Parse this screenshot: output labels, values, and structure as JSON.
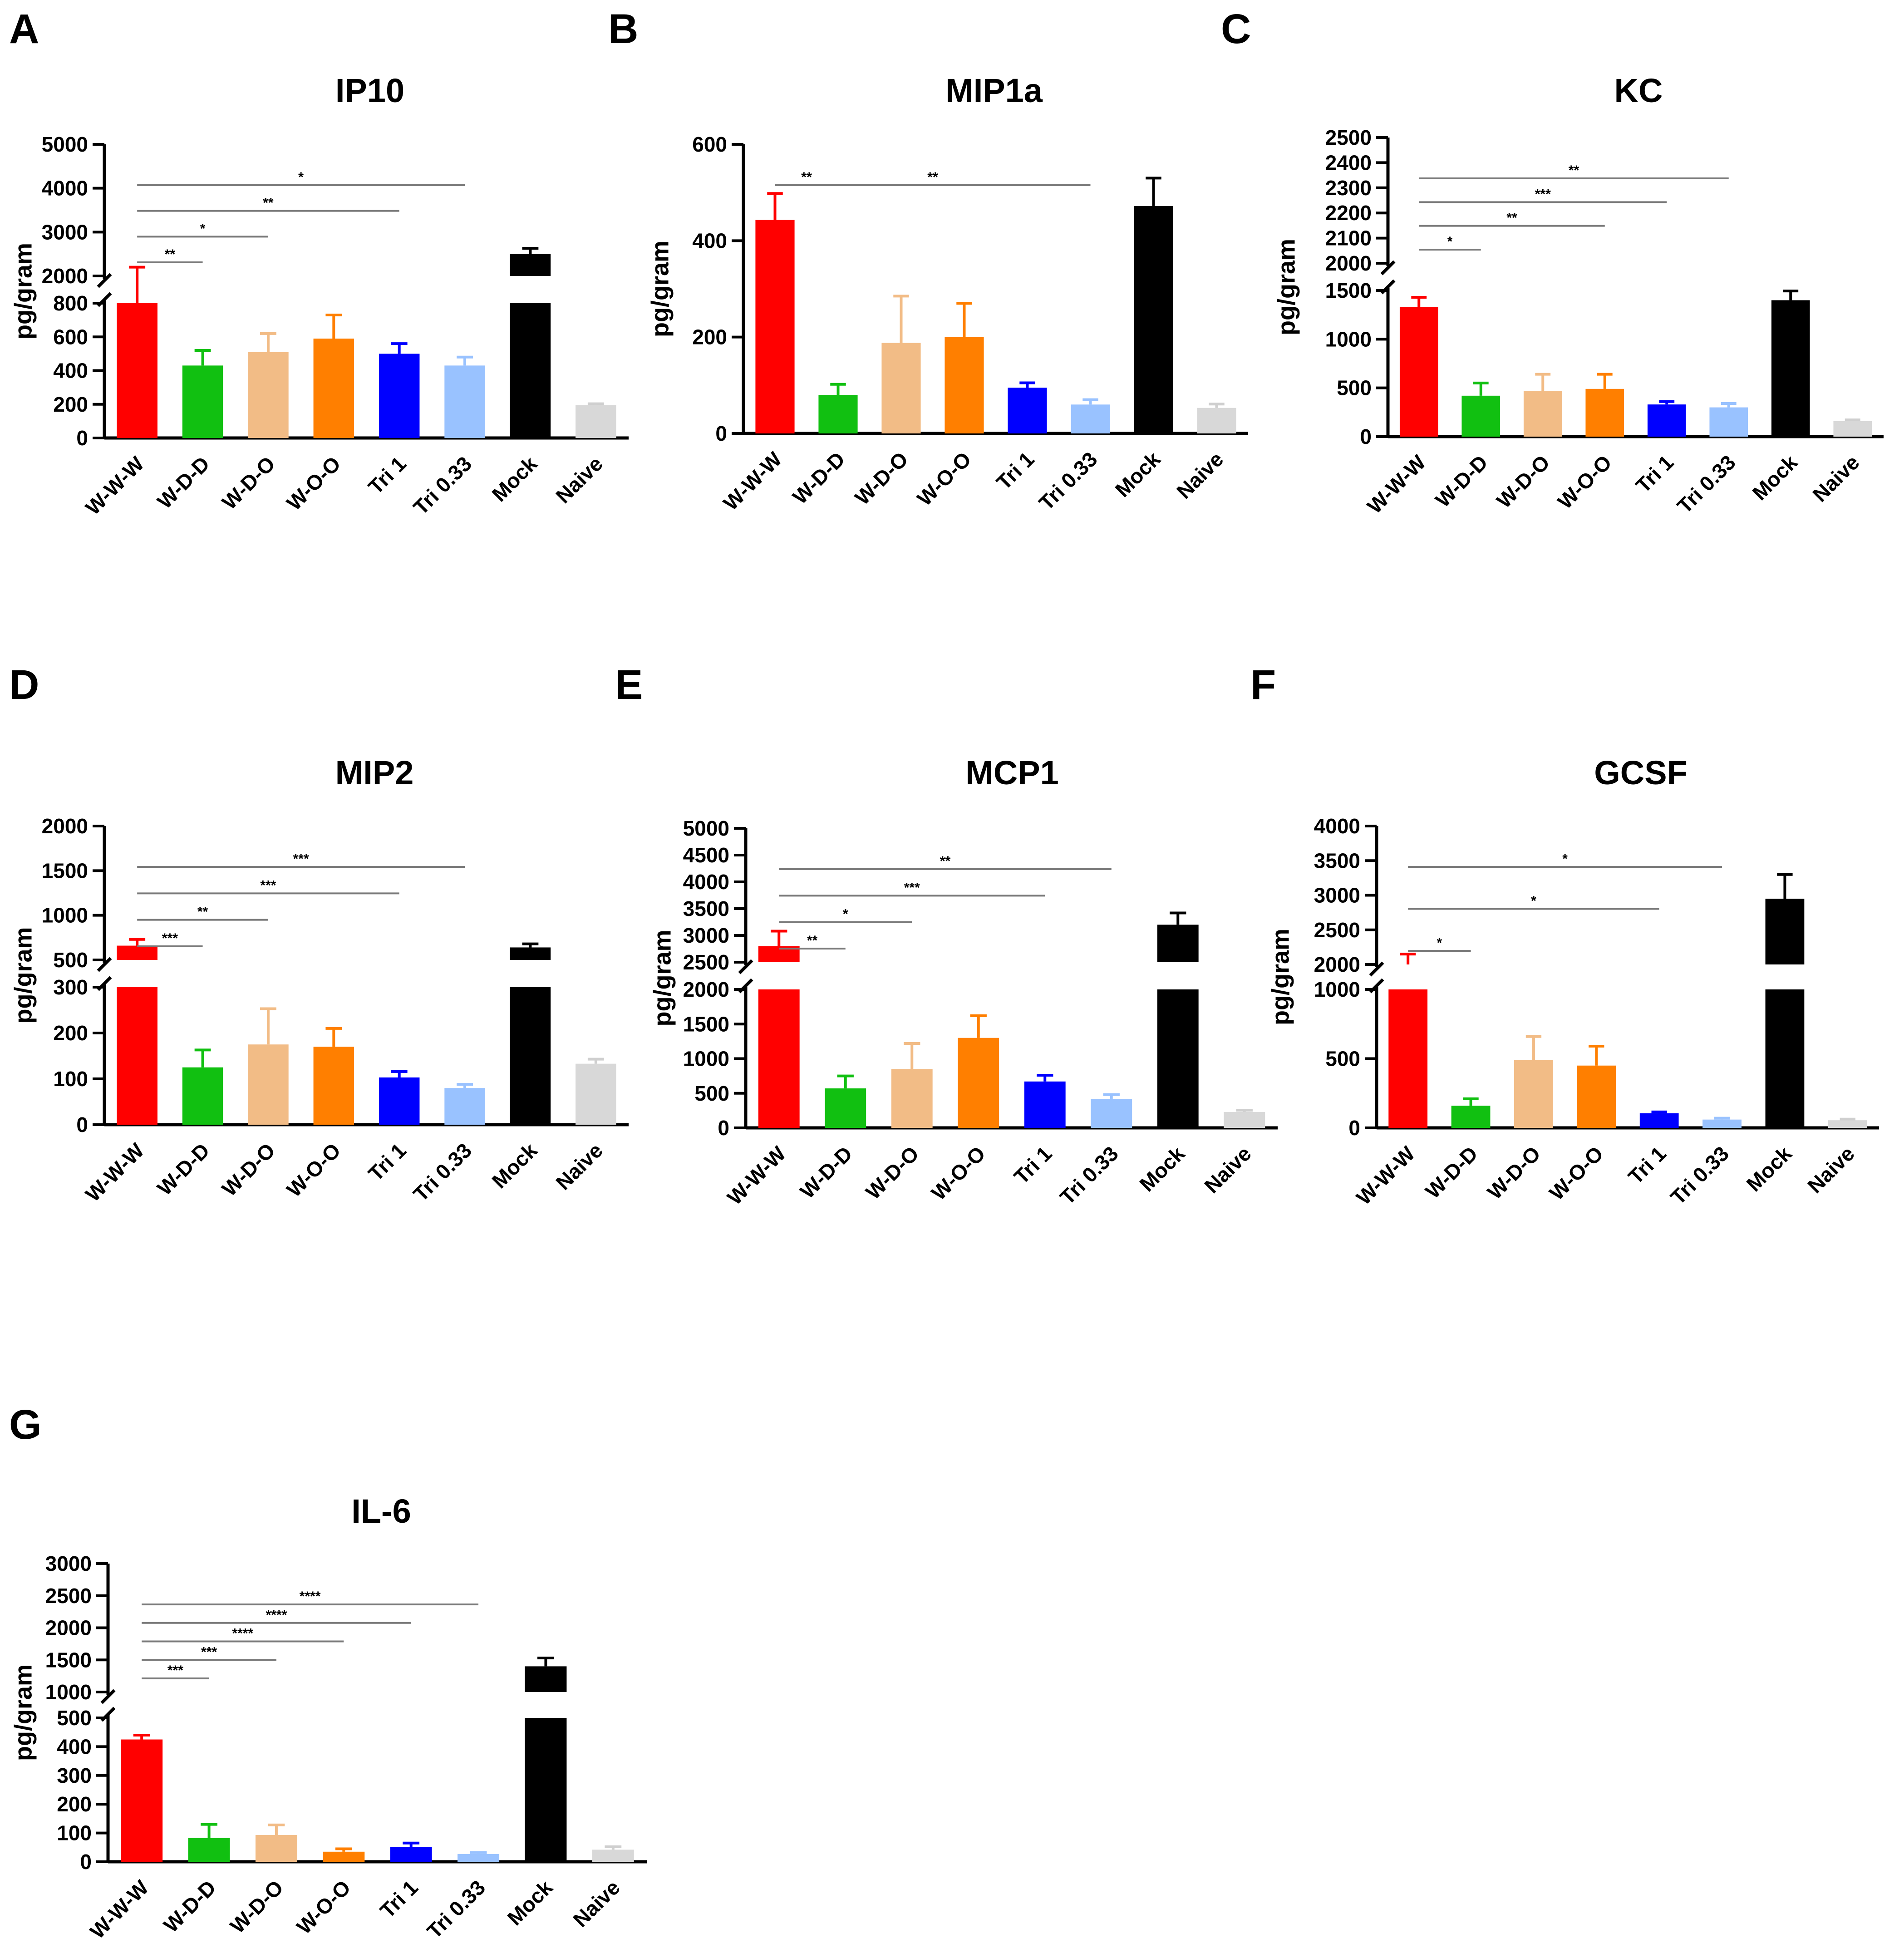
{
  "figure": {
    "category_colors": [
      "#ff0000",
      "#11c011",
      "#f2bc86",
      "#ff7f00",
      "#0000ff",
      "#99c2ff",
      "#000000",
      "#d8d8d8"
    ]
  },
  "chart_data": [
    {
      "panel": "A",
      "title": "IP10",
      "type": "bar",
      "ylabel": "pg/gram",
      "categories": [
        "W-W-W",
        "W-D-D",
        "W-D-O",
        "W-O-O",
        "Tri 1",
        "Tri 0.33",
        "Mock",
        "Naive"
      ],
      "values": [
        1900,
        430,
        510,
        590,
        500,
        430,
        2500,
        195
      ],
      "errors": [
        300,
        90,
        110,
        140,
        60,
        50,
        130,
        8
      ],
      "y_axis_break": true,
      "lower_range": [
        0,
        800
      ],
      "lower_ticks": [
        0,
        200,
        400,
        600,
        800
      ],
      "upper_range": [
        2000,
        5000
      ],
      "upper_ticks": [
        2000,
        3000,
        4000,
        5000
      ],
      "significance": [
        {
          "from": "W-W-W",
          "to": "W-D-D",
          "label": "**"
        },
        {
          "from": "W-W-W",
          "to": "W-D-O",
          "label": "*"
        },
        {
          "from": "W-W-W",
          "to": "Tri 1",
          "label": "**"
        },
        {
          "from": "W-W-W",
          "to": "Tri 0.33",
          "label": "*"
        }
      ]
    },
    {
      "panel": "B",
      "title": "MIP1a",
      "type": "bar",
      "ylabel": "pg/gram",
      "categories": [
        "W-W-W",
        "W-D-D",
        "W-D-O",
        "W-O-O",
        "Tri 1",
        "Tri 0.33",
        "Mock",
        "Naive"
      ],
      "values": [
        443,
        80,
        188,
        200,
        95,
        60,
        472,
        53
      ],
      "errors": [
        55,
        22,
        97,
        70,
        10,
        10,
        58,
        8
      ],
      "y_axis_break": false,
      "range": [
        0,
        600
      ],
      "ticks": [
        0,
        200,
        400,
        600
      ],
      "significance": [
        {
          "from": "W-W-W",
          "to": "W-D-D",
          "label": "**"
        },
        {
          "from": "W-W-W",
          "to": "Tri 0.33",
          "label": "**"
        }
      ]
    },
    {
      "panel": "C",
      "title": "KC",
      "type": "bar",
      "ylabel": "pg/gram",
      "categories": [
        "W-W-W",
        "W-D-D",
        "W-D-O",
        "W-O-O",
        "Tri 1",
        "Tri 0.33",
        "Mock",
        "Naive"
      ],
      "values": [
        1330,
        420,
        470,
        490,
        330,
        300,
        1400,
        160
      ],
      "errors": [
        100,
        130,
        170,
        150,
        30,
        40,
        95,
        12
      ],
      "y_axis_break": true,
      "lower_range": [
        0,
        1500
      ],
      "lower_ticks": [
        0,
        500,
        1000,
        1500
      ],
      "upper_range": [
        2000,
        2500
      ],
      "upper_ticks": [
        2000,
        2100,
        2200,
        2300,
        2400,
        2500
      ],
      "significance": [
        {
          "from": "W-W-W",
          "to": "W-D-D",
          "label": "*"
        },
        {
          "from": "W-W-W",
          "to": "W-O-O",
          "label": "**"
        },
        {
          "from": "W-W-W",
          "to": "Tri 1",
          "label": "***"
        },
        {
          "from": "W-W-W",
          "to": "Tri 0.33",
          "label": "**"
        }
      ]
    },
    {
      "panel": "D",
      "title": "MIP2",
      "type": "bar",
      "ylabel": "pg/gram",
      "categories": [
        "W-W-W",
        "W-D-D",
        "W-D-O",
        "W-O-O",
        "Tri 1",
        "Tri 0.33",
        "Mock",
        "Naive"
      ],
      "values": [
        660,
        125,
        175,
        170,
        103,
        80,
        640,
        133
      ],
      "errors": [
        70,
        38,
        78,
        40,
        13,
        8,
        40,
        10
      ],
      "y_axis_break": true,
      "lower_range": [
        0,
        300
      ],
      "lower_ticks": [
        0,
        100,
        200,
        300
      ],
      "upper_range": [
        500,
        2000
      ],
      "upper_ticks": [
        500,
        1000,
        1500,
        2000
      ],
      "significance": [
        {
          "from": "W-W-W",
          "to": "W-D-D",
          "label": "***"
        },
        {
          "from": "W-W-W",
          "to": "W-D-O",
          "label": "**"
        },
        {
          "from": "W-W-W",
          "to": "Tri 1",
          "label": "***"
        },
        {
          "from": "W-W-W",
          "to": "Tri 0.33",
          "label": "***"
        }
      ]
    },
    {
      "panel": "E",
      "title": "MCP1",
      "type": "bar",
      "ylabel": "pg/gram",
      "categories": [
        "W-W-W",
        "W-D-D",
        "W-D-O",
        "W-O-O",
        "Tri 1",
        "Tri 0.33",
        "Mock",
        "Naive"
      ],
      "values": [
        2800,
        570,
        850,
        1300,
        670,
        420,
        3200,
        230
      ],
      "errors": [
        280,
        180,
        370,
        320,
        90,
        60,
        220,
        25
      ],
      "y_axis_break": true,
      "lower_range": [
        0,
        2000
      ],
      "lower_ticks": [
        0,
        500,
        1000,
        1500,
        2000
      ],
      "upper_range": [
        2500,
        5000
      ],
      "upper_ticks": [
        2500,
        3000,
        3500,
        4000,
        4500,
        5000
      ],
      "significance": [
        {
          "from": "W-W-W",
          "to": "W-D-D",
          "label": "**"
        },
        {
          "from": "W-W-W",
          "to": "W-D-O",
          "label": "*"
        },
        {
          "from": "W-W-W",
          "to": "Tri 1",
          "label": "***"
        },
        {
          "from": "W-W-W",
          "to": "Tri 0.33",
          "label": "**"
        }
      ]
    },
    {
      "panel": "F",
      "title": "GCSF",
      "type": "bar",
      "ylabel": "pg/gram",
      "categories": [
        "W-W-W",
        "W-D-D",
        "W-D-O",
        "W-O-O",
        "Tri 1",
        "Tri 0.33",
        "Mock",
        "Naive"
      ],
      "values": [
        2000,
        160,
        490,
        450,
        105,
        60,
        2950,
        55
      ],
      "errors": [
        150,
        50,
        170,
        140,
        10,
        10,
        350,
        8
      ],
      "y_axis_break": true,
      "lower_range": [
        0,
        1000
      ],
      "lower_ticks": [
        0,
        500,
        1000
      ],
      "upper_range": [
        2000,
        4000
      ],
      "upper_ticks": [
        2000,
        2500,
        3000,
        3500,
        4000
      ],
      "significance": [
        {
          "from": "W-W-W",
          "to": "W-D-D",
          "label": "*"
        },
        {
          "from": "W-W-W",
          "to": "Tri 1",
          "label": "*"
        },
        {
          "from": "W-W-W",
          "to": "Tri 0.33",
          "label": "*"
        }
      ]
    },
    {
      "panel": "G",
      "title": "IL-6",
      "type": "bar",
      "ylabel": "pg/gram",
      "categories": [
        "W-W-W",
        "W-D-D",
        "W-D-O",
        "W-O-O",
        "Tri 1",
        "Tri 0.33",
        "Mock",
        "Naive"
      ],
      "values": [
        425,
        83,
        93,
        35,
        52,
        27,
        1400,
        42
      ],
      "errors": [
        15,
        47,
        35,
        10,
        13,
        5,
        130,
        10
      ],
      "y_axis_break": true,
      "lower_range": [
        0,
        500
      ],
      "lower_ticks": [
        0,
        100,
        200,
        300,
        400,
        500
      ],
      "upper_range": [
        1000,
        3000
      ],
      "upper_ticks": [
        1000,
        1500,
        2000,
        2500,
        3000
      ],
      "significance": [
        {
          "from": "W-W-W",
          "to": "W-D-D",
          "label": "***"
        },
        {
          "from": "W-W-W",
          "to": "W-D-O",
          "label": "***"
        },
        {
          "from": "W-W-W",
          "to": "W-O-O",
          "label": "****"
        },
        {
          "from": "W-W-W",
          "to": "Tri 1",
          "label": "****"
        },
        {
          "from": "W-W-W",
          "to": "Tri 0.33",
          "label": "****"
        }
      ]
    }
  ]
}
